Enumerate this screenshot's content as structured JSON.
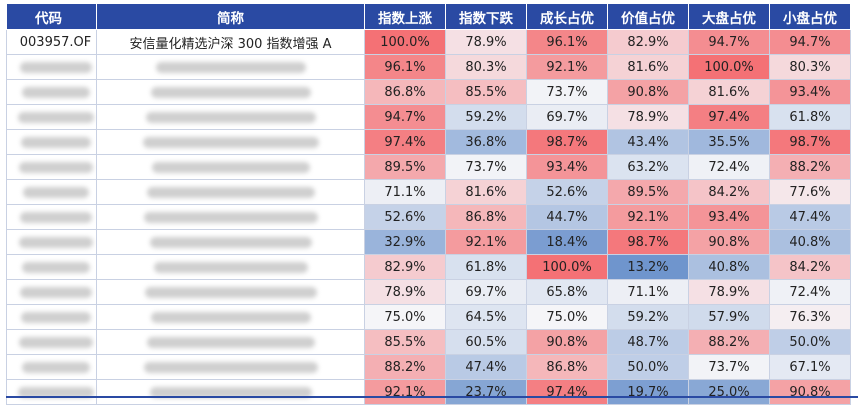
{
  "table": {
    "headers": [
      "代码",
      "简称",
      "指数上涨",
      "指数下跌",
      "成长占优",
      "价值占优",
      "大盘占优",
      "小盘占优"
    ],
    "rows": [
      {
        "code": "003957.OF",
        "name": "安信量化精选沪深 300 指数增强 A",
        "values": [
          "100.0%",
          "78.9%",
          "96.1%",
          "82.9%",
          "94.7%",
          "94.7%"
        ]
      },
      {
        "values": [
          "96.1%",
          "80.3%",
          "92.1%",
          "81.6%",
          "100.0%",
          "80.3%"
        ]
      },
      {
        "values": [
          "86.8%",
          "85.5%",
          "73.7%",
          "90.8%",
          "81.6%",
          "93.4%"
        ]
      },
      {
        "values": [
          "94.7%",
          "59.2%",
          "69.7%",
          "78.9%",
          "97.4%",
          "61.8%"
        ]
      },
      {
        "values": [
          "97.4%",
          "36.8%",
          "98.7%",
          "43.4%",
          "35.5%",
          "98.7%"
        ]
      },
      {
        "values": [
          "89.5%",
          "73.7%",
          "93.4%",
          "63.2%",
          "72.4%",
          "88.2%"
        ]
      },
      {
        "values": [
          "71.1%",
          "81.6%",
          "52.6%",
          "89.5%",
          "84.2%",
          "77.6%"
        ]
      },
      {
        "values": [
          "52.6%",
          "86.8%",
          "44.7%",
          "92.1%",
          "93.4%",
          "47.4%"
        ]
      },
      {
        "values": [
          "32.9%",
          "92.1%",
          "18.4%",
          "98.7%",
          "90.8%",
          "40.8%"
        ]
      },
      {
        "values": [
          "82.9%",
          "61.8%",
          "100.0%",
          "13.2%",
          "40.8%",
          "84.2%"
        ]
      },
      {
        "values": [
          "78.9%",
          "69.7%",
          "65.8%",
          "71.1%",
          "78.9%",
          "72.4%"
        ]
      },
      {
        "values": [
          "75.0%",
          "64.5%",
          "75.0%",
          "59.2%",
          "57.9%",
          "76.3%"
        ]
      },
      {
        "values": [
          "85.5%",
          "60.5%",
          "90.8%",
          "48.7%",
          "88.2%",
          "50.0%"
        ]
      },
      {
        "values": [
          "88.2%",
          "47.4%",
          "86.8%",
          "50.0%",
          "73.7%",
          "67.1%"
        ]
      },
      {
        "values": [
          "92.1%",
          "23.7%",
          "97.4%",
          "19.7%",
          "25.0%",
          "90.8%"
        ]
      }
    ]
  },
  "colors": {
    "header_bg": "#2a4aa3",
    "scale_low": "#6f95cd",
    "scale_mid": "#f5f5f8",
    "scale_high": "#f47175"
  }
}
